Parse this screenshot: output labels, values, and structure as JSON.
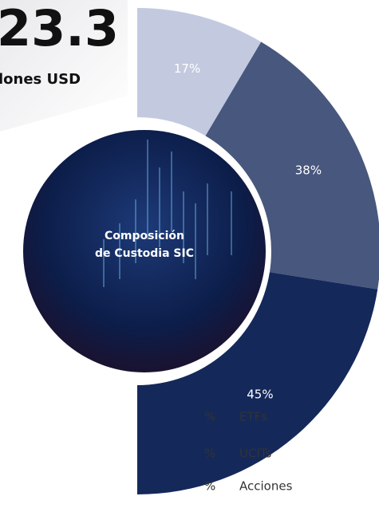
{
  "chart_data": {
    "type": "donut",
    "headline": "23.3",
    "headline_unit": "lones USD",
    "center_label": [
      "Composición",
      "de Custodia SIC"
    ],
    "categories": [
      "ETFs",
      "UCITs",
      "Acciones"
    ],
    "values": [
      17,
      38,
      45
    ],
    "value_labels": [
      "17%",
      "38%",
      "45%"
    ],
    "colors": [
      "#c3cae0",
      "#48577d",
      "#14285a"
    ],
    "legend_fragments": [
      "%",
      "%",
      "%"
    ]
  }
}
